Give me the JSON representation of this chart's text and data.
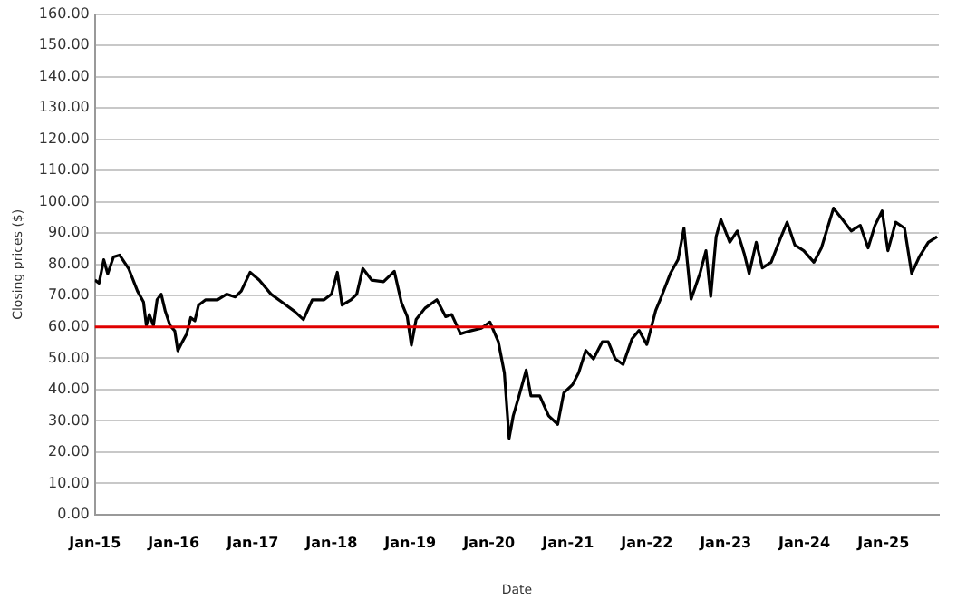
{
  "chart_data": {
    "type": "line",
    "xlabel": "Date",
    "ylabel": "Closing prices ($)",
    "x": [
      "2015-01-01",
      "2015-01-20",
      "2015-02-11",
      "2015-03-01",
      "2015-03-28",
      "2015-04-25",
      "2015-06-06",
      "2015-07-17",
      "2015-08-14",
      "2015-08-27",
      "2015-09-10",
      "2015-09-29",
      "2015-10-16",
      "2015-11-04",
      "2015-11-23",
      "2015-12-15",
      "2016-01-06",
      "2016-01-20",
      "2016-02-08",
      "2016-03-01",
      "2016-03-20",
      "2016-04-08",
      "2016-04-25",
      "2016-05-28",
      "2016-07-22",
      "2016-09-02",
      "2016-10-12",
      "2016-11-09",
      "2016-12-20",
      "2017-01-31",
      "2017-03-27",
      "2017-05-20",
      "2017-07-14",
      "2017-08-24",
      "2017-10-04",
      "2017-11-28",
      "2018-01-01",
      "2018-01-28",
      "2018-02-19",
      "2018-04-01",
      "2018-04-28",
      "2018-05-26",
      "2018-07-06",
      "2018-08-30",
      "2018-10-19",
      "2018-11-21",
      "2018-12-18",
      "2019-01-06",
      "2019-01-28",
      "2019-03-10",
      "2019-05-04",
      "2019-06-14",
      "2019-07-12",
      "2019-08-22",
      "2019-10-02",
      "2019-11-26",
      "2020-01-05",
      "2020-02-13",
      "2020-03-12",
      "2020-04-03",
      "2020-04-22",
      "2020-05-19",
      "2020-06-21",
      "2020-07-13",
      "2020-08-23",
      "2020-10-03",
      "2020-11-14",
      "2020-12-12",
      "2021-01-22",
      "2021-02-19",
      "2021-03-24",
      "2021-04-29",
      "2021-06-09",
      "2021-07-06",
      "2021-08-08",
      "2021-09-13",
      "2021-10-24",
      "2021-11-26",
      "2022-01-01",
      "2022-02-11",
      "2022-03-10",
      "2022-04-20",
      "2022-05-26",
      "2022-06-22",
      "2022-07-25",
      "2022-09-04",
      "2022-10-02",
      "2022-10-24",
      "2022-11-18",
      "2022-12-10",
      "2023-01-20",
      "2023-02-24",
      "2023-03-28",
      "2023-04-20",
      "2023-05-23",
      "2023-06-20",
      "2023-07-31",
      "2023-09-10",
      "2023-10-13",
      "2023-11-18",
      "2023-12-29",
      "2024-02-14",
      "2024-03-20",
      "2024-05-15",
      "2024-06-25",
      "2024-08-05",
      "2024-09-16",
      "2024-10-22",
      "2024-11-23",
      "2024-12-26",
      "2025-01-22",
      "2025-02-27",
      "2025-04-09",
      "2025-05-12",
      "2025-06-17",
      "2025-07-28",
      "2025-09-07"
    ],
    "series": [
      {
        "color": "#000000",
        "values": [
          75,
          74,
          81.5,
          77,
          82.4,
          83,
          78.7,
          71.5,
          68,
          60.5,
          64,
          60.5,
          68.7,
          70.5,
          65,
          60.5,
          58.7,
          52.4,
          55,
          57.8,
          63,
          62,
          67,
          68.7,
          68.7,
          70.5,
          69.6,
          71.5,
          77.5,
          75,
          70.5,
          67.8,
          65,
          62.4,
          68.7,
          68.7,
          70.5,
          77.5,
          67,
          68.7,
          70.5,
          78.7,
          75,
          74.5,
          77.8,
          67.8,
          63.3,
          54.2,
          62.4,
          66,
          68.7,
          63.3,
          64,
          57.8,
          58.7,
          59.6,
          61.6,
          55.3,
          45.3,
          24.4,
          31.6,
          38,
          46.2,
          38,
          38,
          31.6,
          28.9,
          38.9,
          41.6,
          45.3,
          52.5,
          49.8,
          55.3,
          55.3,
          49.8,
          48,
          56.2,
          58.9,
          54.4,
          65.3,
          69.8,
          77.1,
          81.6,
          91.6,
          68.9,
          77.1,
          84.4,
          69.8,
          88.9,
          94.4,
          87.1,
          90.7,
          83.5,
          77.1,
          87.1,
          78.9,
          80.7,
          88,
          93.5,
          86.2,
          84.4,
          80.7,
          85.3,
          98,
          94.4,
          90.7,
          92.5,
          85.3,
          92.5,
          97.1,
          84.4,
          93.5,
          91.6,
          77.1,
          82.5,
          87.1,
          88.9
        ]
      }
    ],
    "xlim": [
      "2015-01-01",
      "2025-09-15"
    ],
    "xticks": [
      {
        "value": "2015-01-01",
        "label": "Jan-15"
      },
      {
        "value": "2016-01-01",
        "label": "Jan-16"
      },
      {
        "value": "2017-01-01",
        "label": "Jan-17"
      },
      {
        "value": "2018-01-01",
        "label": "Jan-18"
      },
      {
        "value": "2019-01-01",
        "label": "Jan-19"
      },
      {
        "value": "2020-01-01",
        "label": "Jan-20"
      },
      {
        "value": "2021-01-01",
        "label": "Jan-21"
      },
      {
        "value": "2022-01-01",
        "label": "Jan-22"
      },
      {
        "value": "2023-01-01",
        "label": "Jan-23"
      },
      {
        "value": "2024-01-01",
        "label": "Jan-24"
      },
      {
        "value": "2025-01-01",
        "label": "Jan-25"
      }
    ],
    "ylim": [
      0,
      160
    ],
    "yticks": [
      {
        "value": 0,
        "label": "0.00"
      },
      {
        "value": 10,
        "label": "10.00"
      },
      {
        "value": 20,
        "label": "20.00"
      },
      {
        "value": 30,
        "label": "30.00"
      },
      {
        "value": 40,
        "label": "40.00"
      },
      {
        "value": 50,
        "label": "50.00"
      },
      {
        "value": 60,
        "label": "60.00"
      },
      {
        "value": 70,
        "label": "70.00"
      },
      {
        "value": 80,
        "label": "80.00"
      },
      {
        "value": 90,
        "label": "90.00"
      },
      {
        "value": 100,
        "label": "100.00"
      },
      {
        "value": 110,
        "label": "110.00"
      },
      {
        "value": 120,
        "label": "120.00"
      },
      {
        "value": 130,
        "label": "130.00"
      },
      {
        "value": 140,
        "label": "140.00"
      },
      {
        "value": 150,
        "label": "150.00"
      },
      {
        "value": 160,
        "label": "160.00"
      }
    ],
    "ref_lines": [
      {
        "axis": "y",
        "value": 60,
        "color": "#e00000"
      }
    ],
    "grid": "y",
    "legend": false,
    "marker": "none",
    "line_style": "solid"
  }
}
